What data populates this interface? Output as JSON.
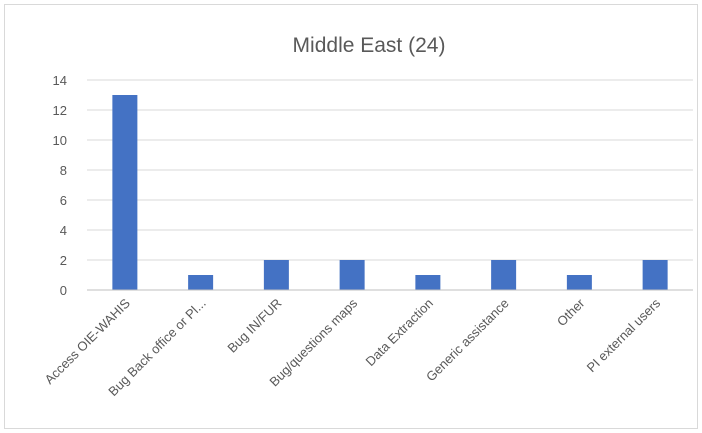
{
  "chart_data": {
    "type": "bar",
    "title": "Middle East (24)",
    "categories": [
      "Access OIE-WAHIS",
      "Bug Back office or Pl...",
      "Bug IN/FUR",
      "Bug/questions maps",
      "Data Extraction",
      "Generic assistance",
      "Other",
      "PI external users"
    ],
    "values": [
      13,
      1,
      2,
      2,
      1,
      2,
      1,
      2
    ],
    "ylim": [
      0,
      14
    ],
    "yticks": [
      "0",
      "2",
      "4",
      "6",
      "8",
      "10",
      "12",
      "14"
    ],
    "xlabel": "",
    "ylabel": "",
    "grid": true,
    "legend": "none",
    "bar_color": "#4472c4"
  }
}
